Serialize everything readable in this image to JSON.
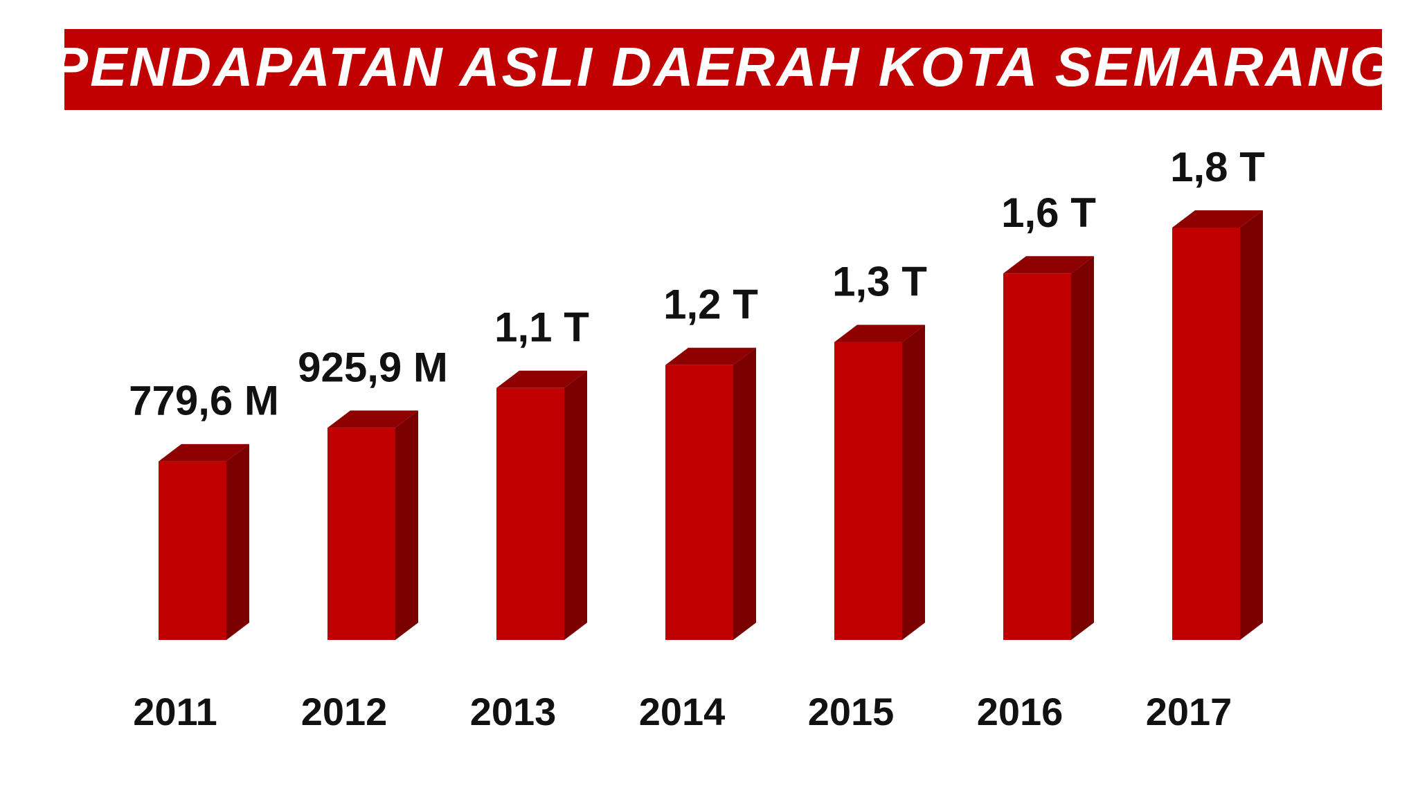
{
  "chart_data": {
    "type": "bar3d",
    "title": "PENDAPATAN ASLI DAERAH KOTA SEMARANG",
    "categories": [
      "2011",
      "2012",
      "2013",
      "2014",
      "2015",
      "2016",
      "2017"
    ],
    "values": [
      779.6,
      925.9,
      1100,
      1200,
      1300,
      1600,
      1800
    ],
    "value_labels": [
      "779,6 M",
      "925,9 M",
      "1,1 T",
      "1,2 T",
      "1,3 T",
      "1,6 T",
      "1,8 T"
    ],
    "color": "#c00000"
  }
}
